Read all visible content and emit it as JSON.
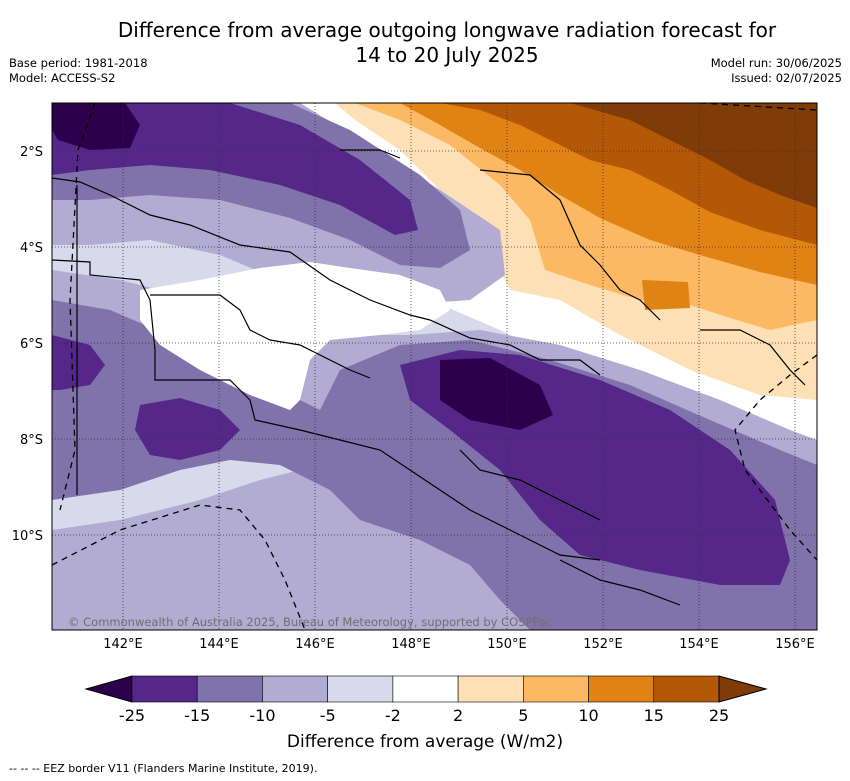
{
  "title_line1": "Difference from average outgoing longwave radiation forecast for",
  "title_line2": "14 to 20 July 2025",
  "base_period": "Base period: 1981-2018",
  "model": "Model: ACCESS-S2",
  "model_run": "Model run: 30/06/2025",
  "issued": "Issued: 02/07/2025",
  "map": {
    "lon_labels": [
      "142°E",
      "144°E",
      "146°E",
      "148°E",
      "150°E",
      "152°E",
      "154°E",
      "156°E"
    ],
    "lat_labels": [
      "2°S",
      "4°S",
      "6°S",
      "8°S",
      "10°S"
    ],
    "copyright": "© Commonwealth of Australia 2025, Bureau of Meteorology, supported by COSPPac"
  },
  "colorbar": {
    "label": "Difference from average (W/m2)",
    "ticks": [
      "-25",
      "-15",
      "-10",
      "-5",
      "-2",
      "2",
      "5",
      "10",
      "15",
      "25"
    ],
    "colors": [
      "#2d004b",
      "#542788",
      "#8073ac",
      "#b2abd2",
      "#d8daeb",
      "#ffffff",
      "#fee0b6",
      "#fdb863",
      "#e08214",
      "#b35806",
      "#7f3b08"
    ]
  },
  "footer": "-- -- -- EEZ border V11 (Flanders Marine Institute, 2019)."
}
